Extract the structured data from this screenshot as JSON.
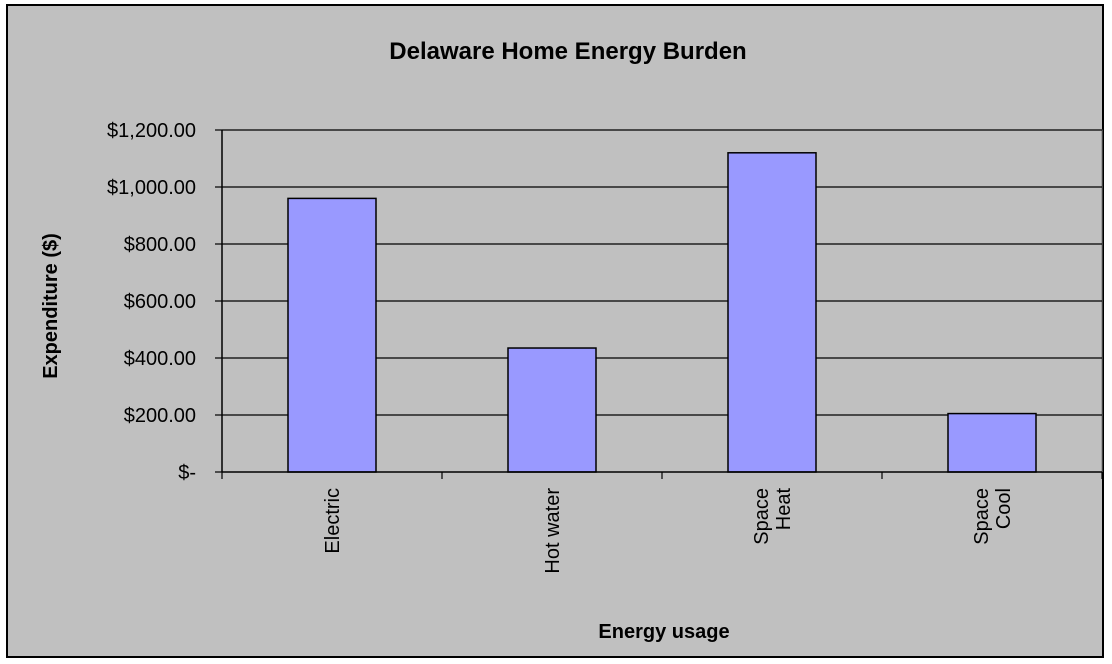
{
  "chart_data": {
    "type": "bar",
    "title": "Delaware Home Energy Burden",
    "xlabel": "Energy usage",
    "ylabel": "Expenditure ($)",
    "categories": [
      [
        "Electric"
      ],
      [
        "Hot water"
      ],
      [
        "Space",
        "Heat"
      ],
      [
        "Space",
        "Cool"
      ]
    ],
    "values": [
      960,
      435,
      1120,
      205
    ],
    "ylim": [
      0,
      1200
    ],
    "yticks": [
      0,
      200,
      400,
      600,
      800,
      1000,
      1200
    ],
    "ytick_labels": [
      "$-",
      "$200.00",
      "$400.00",
      "$600.00",
      "$800.00",
      "$1,000.00",
      "$1,200.00"
    ],
    "grid": true,
    "colors": {
      "chart_area": "#c0c0c0",
      "plot_area": "#c0c0c0",
      "bar_fill": "#9999ff",
      "bar_stroke": "#000000",
      "gridline": "#000000"
    }
  }
}
